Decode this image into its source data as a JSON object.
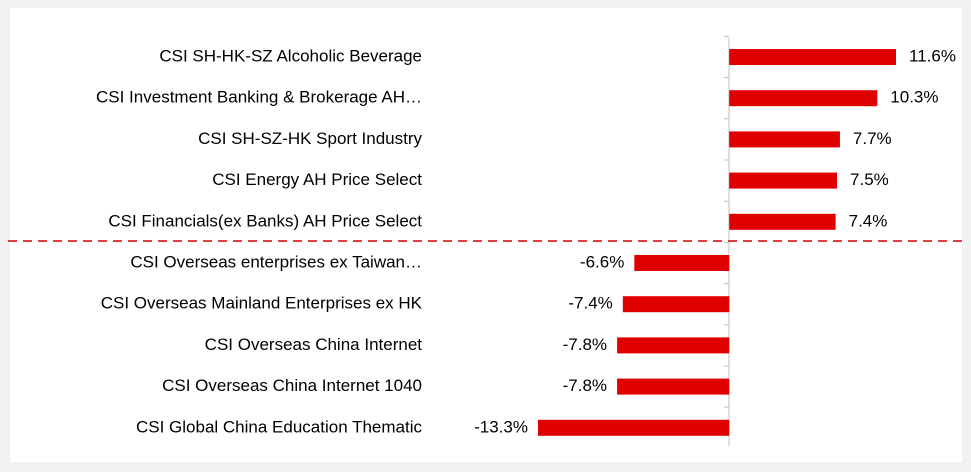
{
  "chart_data": {
    "type": "barh",
    "categories": [
      "CSI SH-HK-SZ Alcoholic Beverage",
      "CSI Investment Banking & Brokerage AH…",
      "CSI SH-SZ-HK Sport Industry",
      "CSI Energy AH Price Select",
      "CSI Financials(ex Banks) AH Price Select",
      "CSI Overseas enterprises ex Taiwan…",
      "CSI Overseas Mainland Enterprises ex HK",
      "CSI Overseas China Internet",
      "CSI Overseas China Internet 1040",
      "CSI Global China Education Thematic"
    ],
    "values": [
      11.6,
      10.3,
      7.7,
      7.5,
      7.4,
      -6.6,
      -7.4,
      -7.8,
      -7.8,
      -13.3
    ],
    "value_labels": [
      "11.6%",
      "10.3%",
      "7.7%",
      "7.5%",
      "7.4%",
      "-6.6%",
      "-7.4%",
      "-7.8%",
      "-7.8%",
      "-13.3%"
    ],
    "color": "#e00000"
  }
}
